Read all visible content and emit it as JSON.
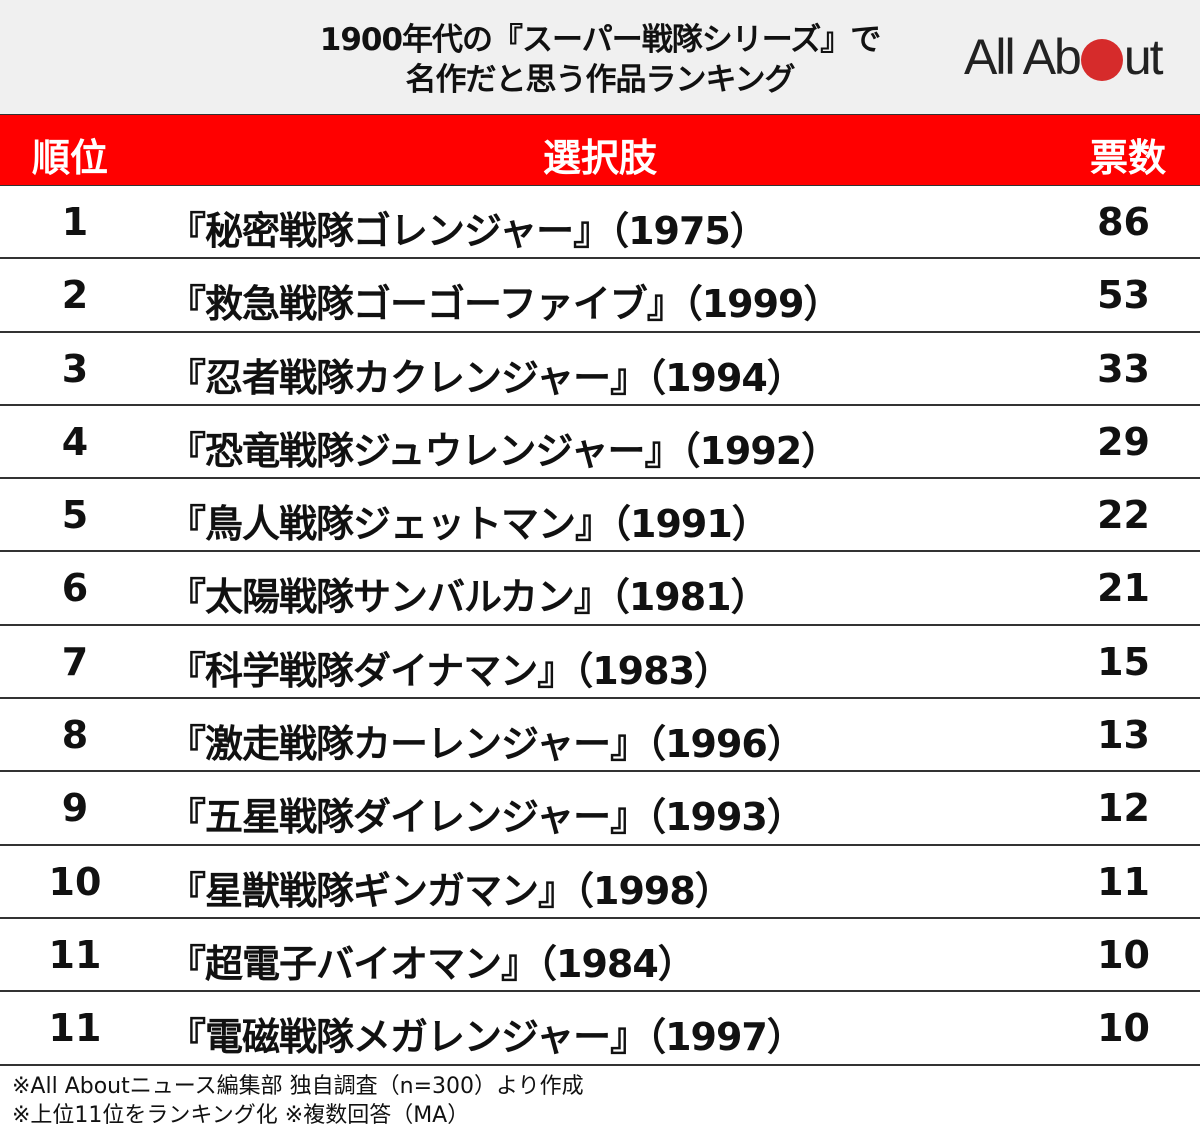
{
  "header": {
    "title_line1": "1900年代の『スーパー戦隊シリーズ』で",
    "title_line2": "名作だと思う作品ランキング",
    "logo": {
      "part1": "All Ab",
      "part2": "ut",
      "dot_color": "#d62b2b"
    }
  },
  "table": {
    "columns": {
      "rank": "順位",
      "choice": "選択肢",
      "votes": "票数"
    },
    "header_color": "#ff0000",
    "rows": [
      {
        "rank": "1",
        "title": "『秘密戦隊ゴレンジャー』（1975）",
        "votes": "86"
      },
      {
        "rank": "2",
        "title": "『救急戦隊ゴーゴーファイブ』（1999）",
        "votes": "53"
      },
      {
        "rank": "3",
        "title": "『忍者戦隊カクレンジャー』（1994）",
        "votes": "33"
      },
      {
        "rank": "4",
        "title": "『恐竜戦隊ジュウレンジャー』（1992）",
        "votes": "29"
      },
      {
        "rank": "5",
        "title": "『鳥人戦隊ジェットマン』（1991）",
        "votes": "22"
      },
      {
        "rank": "6",
        "title": "『太陽戦隊サンバルカン』（1981）",
        "votes": "21"
      },
      {
        "rank": "7",
        "title": "『科学戦隊ダイナマン』（1983）",
        "votes": "15"
      },
      {
        "rank": "8",
        "title": "『激走戦隊カーレンジャー』（1996）",
        "votes": "13"
      },
      {
        "rank": "9",
        "title": "『五星戦隊ダイレンジャー』（1993）",
        "votes": "12"
      },
      {
        "rank": "10",
        "title": "『星獣戦隊ギンガマン』（1998）",
        "votes": "11"
      },
      {
        "rank": "11",
        "title": "『超電子バイオマン』（1984）",
        "votes": "10"
      },
      {
        "rank": "11",
        "title": "『電磁戦隊メガレンジャー』（1997）",
        "votes": "10"
      }
    ]
  },
  "footnotes": {
    "line1": "※All Aboutニュース編集部 独自調査（n=300）より作成",
    "line2": "※上位11位をランキング化 ※複数回答（MA）"
  },
  "chart_data": {
    "type": "table",
    "title": "1900年代の『スーパー戦隊シリーズ』で名作だと思う作品ランキング",
    "columns": [
      "順位",
      "選択肢",
      "票数"
    ],
    "categories": [
      "『秘密戦隊ゴレンジャー』（1975）",
      "『救急戦隊ゴーゴーファイブ』（1999）",
      "『忍者戦隊カクレンジャー』（1994）",
      "『恐竜戦隊ジュウレンジャー』（1992）",
      "『鳥人戦隊ジェットマン』（1991）",
      "『太陽戦隊サンバルカン』（1981）",
      "『科学戦隊ダイナマン』（1983）",
      "『激走戦隊カーレンジャー』（1996）",
      "『五星戦隊ダイレンジャー』（1993）",
      "『星獣戦隊ギンガマン』（1998）",
      "『超電子バイオマン』（1984）",
      "『電磁戦隊メガレンジャー』（1997）"
    ],
    "ranks": [
      1,
      2,
      3,
      4,
      5,
      6,
      7,
      8,
      9,
      10,
      11,
      11
    ],
    "values": [
      86,
      53,
      33,
      29,
      22,
      21,
      15,
      13,
      12,
      11,
      10,
      10
    ],
    "notes": [
      "n=300",
      "複数回答（MA）"
    ]
  }
}
